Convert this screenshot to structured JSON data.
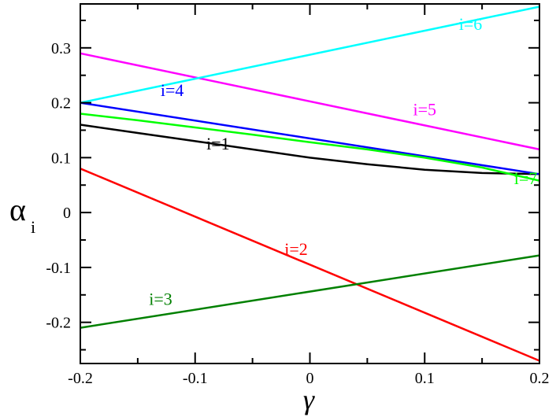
{
  "chart_data": {
    "type": "line",
    "title": "",
    "xlabel": "γ",
    "ylabel": "α",
    "ylabel_subscript": "i",
    "xlim": [
      -0.2,
      0.2
    ],
    "ylim": [
      -0.275,
      0.38
    ],
    "xticks": [
      -0.2,
      -0.1,
      0,
      0.1,
      0.2
    ],
    "xtick_labels": [
      "-0.2",
      "-0.1",
      "0",
      "0.1",
      "0.2"
    ],
    "yticks": [
      -0.2,
      -0.1,
      0,
      0.1,
      0.2,
      0.3
    ],
    "ytick_labels": [
      "-0.2",
      "-0.1",
      "0",
      "0.1",
      "0.2",
      "0.3"
    ],
    "grid": false,
    "legend": "none",
    "series": [
      {
        "name": "i=1",
        "color": "#000000",
        "x": [
          -0.2,
          -0.15,
          -0.1,
          -0.05,
          0,
          0.05,
          0.1,
          0.15,
          0.2
        ],
        "y": [
          0.16,
          0.145,
          0.13,
          0.115,
          0.1,
          0.088,
          0.078,
          0.072,
          0.07
        ]
      },
      {
        "name": "i=2",
        "color": "#ff0000",
        "x": [
          -0.2,
          0.2
        ],
        "y": [
          0.08,
          -0.27
        ]
      },
      {
        "name": "i=3",
        "color": "#008000",
        "x": [
          -0.2,
          0.2
        ],
        "y": [
          -0.21,
          -0.078
        ]
      },
      {
        "name": "i=4",
        "color": "#0000ff",
        "x": [
          -0.2,
          0.2
        ],
        "y": [
          0.2,
          0.07
        ]
      },
      {
        "name": "i=5",
        "color": "#ff00ff",
        "x": [
          -0.2,
          0.2
        ],
        "y": [
          0.29,
          0.115
        ]
      },
      {
        "name": "i=6",
        "color": "#00ffff",
        "x": [
          -0.2,
          0.2
        ],
        "y": [
          0.2,
          0.375
        ]
      },
      {
        "name": "i=7",
        "color": "#00ff00",
        "x": [
          -0.2,
          -0.15,
          -0.1,
          -0.05,
          0,
          0.05,
          0.1,
          0.15,
          0.2
        ],
        "y": [
          0.18,
          0.168,
          0.155,
          0.142,
          0.128,
          0.115,
          0.1,
          0.082,
          0.058
        ]
      }
    ],
    "annotations": [
      {
        "text": "i=1",
        "color": "#000000",
        "x": -0.08,
        "y": 0.115
      },
      {
        "text": "i=2",
        "color": "#ff0000",
        "x": -0.012,
        "y": -0.077
      },
      {
        "text": "i=3",
        "color": "#008000",
        "x": -0.13,
        "y": -0.168
      },
      {
        "text": "i=4",
        "color": "#0000ff",
        "x": -0.12,
        "y": 0.212
      },
      {
        "text": "i=5",
        "color": "#ff00ff",
        "x": 0.1,
        "y": 0.177
      },
      {
        "text": "i=6",
        "color": "#00ffff",
        "x": 0.14,
        "y": 0.333
      },
      {
        "text": "i=7",
        "color": "#00ff00",
        "x": 0.188,
        "y": 0.052
      }
    ]
  }
}
